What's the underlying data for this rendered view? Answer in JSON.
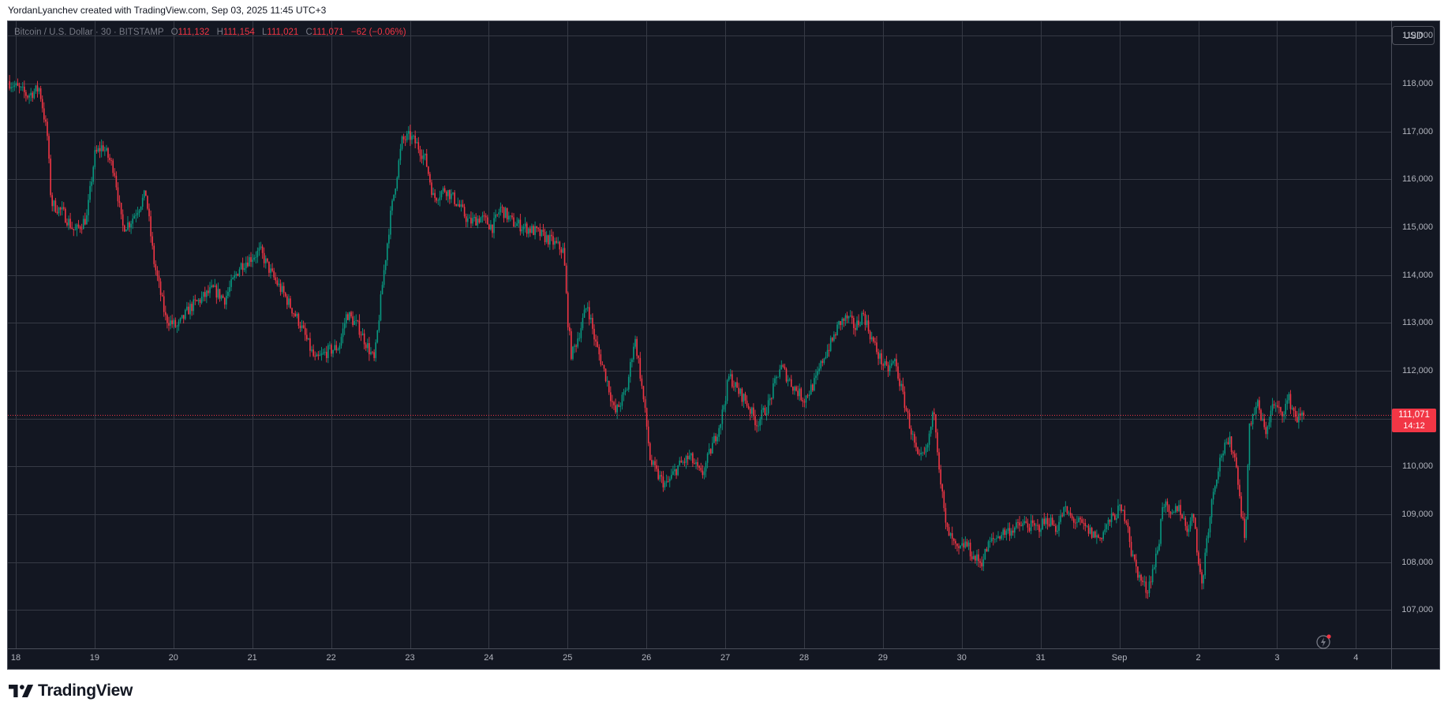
{
  "credit": "YordanLyanchev created with TradingView.com, Sep 03, 2025 11:45 UTC+3",
  "legend": {
    "symbol": "Bitcoin / U.S. Dollar · 30 · BITSTAMP",
    "o_key": "O",
    "o": "111,132",
    "h_key": "H",
    "h": "111,154",
    "l_key": "L",
    "l": "111,021",
    "c_key": "C",
    "c": "111,071",
    "change": "−62 (−0.06%)"
  },
  "currency_button": "USD",
  "price_tag": {
    "price": "111,071",
    "countdown": "14:12"
  },
  "brand": "TradingView",
  "icons": {
    "logo": "tradingview-logo-icon",
    "bolt": "lightning-icon"
  },
  "colors": {
    "up": "#089981",
    "down": "#f23645",
    "background": "#131722",
    "grid": "#363a45"
  },
  "chart_data": {
    "type": "candlestick",
    "symbol": "BTCUSD",
    "exchange": "BITSTAMP",
    "interval": "30",
    "ylim": [
      106200,
      119300
    ],
    "y_ticks": [
      119000,
      118000,
      117000,
      116000,
      115000,
      114000,
      113000,
      112000,
      111000,
      110000,
      109000,
      108000,
      107000
    ],
    "y_tick_labels": [
      "119,000",
      "118,000",
      "117,000",
      "116,000",
      "115,000",
      "114,000",
      "113,000",
      "112,000",
      "111,000",
      "110,000",
      "109,000",
      "108,000",
      "107,000"
    ],
    "x_tick_labels": [
      "18",
      "19",
      "20",
      "21",
      "22",
      "23",
      "24",
      "25",
      "26",
      "27",
      "28",
      "29",
      "30",
      "31",
      "Sep",
      "2",
      "3",
      "4"
    ],
    "x_tick_days": [
      0,
      1,
      2,
      3,
      4,
      5,
      6,
      7,
      8,
      9,
      10,
      11,
      12,
      13,
      14,
      15,
      16,
      17
    ],
    "last_price": 111071,
    "grid": true,
    "close_path": [
      [
        -0.1,
        118050
      ],
      [
        0.15,
        117750
      ],
      [
        0.3,
        117900
      ],
      [
        0.4,
        116900
      ],
      [
        0.45,
        115500
      ],
      [
        0.6,
        115300
      ],
      [
        0.75,
        114900
      ],
      [
        0.9,
        115200
      ],
      [
        1.0,
        116500
      ],
      [
        1.1,
        116700
      ],
      [
        1.25,
        116200
      ],
      [
        1.35,
        115000
      ],
      [
        1.45,
        115100
      ],
      [
        1.55,
        115400
      ],
      [
        1.65,
        115700
      ],
      [
        1.75,
        114300
      ],
      [
        1.9,
        113100
      ],
      [
        2.05,
        112900
      ],
      [
        2.2,
        113300
      ],
      [
        2.35,
        113500
      ],
      [
        2.5,
        113700
      ],
      [
        2.65,
        113500
      ],
      [
        2.85,
        114200
      ],
      [
        3.1,
        114500
      ],
      [
        3.25,
        114000
      ],
      [
        3.4,
        113600
      ],
      [
        3.6,
        113000
      ],
      [
        3.8,
        112200
      ],
      [
        3.95,
        112400
      ],
      [
        4.1,
        112500
      ],
      [
        4.2,
        113200
      ],
      [
        4.35,
        112900
      ],
      [
        4.55,
        112200
      ],
      [
        4.65,
        113800
      ],
      [
        4.75,
        115200
      ],
      [
        4.9,
        116800
      ],
      [
        5.0,
        116900
      ],
      [
        5.1,
        116700
      ],
      [
        5.2,
        116400
      ],
      [
        5.3,
        115600
      ],
      [
        5.45,
        115800
      ],
      [
        5.6,
        115500
      ],
      [
        5.75,
        115100
      ],
      [
        5.9,
        115200
      ],
      [
        6.05,
        115000
      ],
      [
        6.15,
        115400
      ],
      [
        6.3,
        115100
      ],
      [
        6.45,
        115000
      ],
      [
        6.6,
        114900
      ],
      [
        6.8,
        114700
      ],
      [
        6.95,
        114500
      ],
      [
        7.0,
        113100
      ],
      [
        7.05,
        112300
      ],
      [
        7.15,
        112800
      ],
      [
        7.25,
        113400
      ],
      [
        7.35,
        112600
      ],
      [
        7.5,
        111800
      ],
      [
        7.6,
        111100
      ],
      [
        7.75,
        111600
      ],
      [
        7.85,
        112700
      ],
      [
        7.9,
        112200
      ],
      [
        8.0,
        110900
      ],
      [
        8.05,
        110100
      ],
      [
        8.15,
        109800
      ],
      [
        8.25,
        109600
      ],
      [
        8.4,
        110000
      ],
      [
        8.55,
        110200
      ],
      [
        8.7,
        109800
      ],
      [
        8.85,
        110500
      ],
      [
        8.95,
        111000
      ],
      [
        9.05,
        111900
      ],
      [
        9.15,
        111600
      ],
      [
        9.25,
        111400
      ],
      [
        9.4,
        110900
      ],
      [
        9.55,
        111300
      ],
      [
        9.7,
        112100
      ],
      [
        9.85,
        111700
      ],
      [
        10.0,
        111400
      ],
      [
        10.15,
        111800
      ],
      [
        10.25,
        112300
      ],
      [
        10.35,
        112600
      ],
      [
        10.45,
        113000
      ],
      [
        10.55,
        113100
      ],
      [
        10.65,
        112900
      ],
      [
        10.75,
        113200
      ],
      [
        10.85,
        112700
      ],
      [
        10.95,
        112300
      ],
      [
        11.05,
        112000
      ],
      [
        11.15,
        112200
      ],
      [
        11.25,
        111500
      ],
      [
        11.35,
        110800
      ],
      [
        11.45,
        110100
      ],
      [
        11.55,
        110300
      ],
      [
        11.65,
        111200
      ],
      [
        11.72,
        109900
      ],
      [
        11.8,
        108700
      ],
      [
        11.95,
        108200
      ],
      [
        12.05,
        108400
      ],
      [
        12.15,
        108100
      ],
      [
        12.25,
        108000
      ],
      [
        12.35,
        108400
      ],
      [
        12.5,
        108600
      ],
      [
        12.65,
        108700
      ],
      [
        12.8,
        108800
      ],
      [
        12.95,
        108700
      ],
      [
        13.1,
        108900
      ],
      [
        13.2,
        108700
      ],
      [
        13.3,
        109100
      ],
      [
        13.4,
        108900
      ],
      [
        13.5,
        108800
      ],
      [
        13.65,
        108600
      ],
      [
        13.75,
        108500
      ],
      [
        13.85,
        108800
      ],
      [
        14.0,
        109100
      ],
      [
        14.1,
        108900
      ],
      [
        14.15,
        108200
      ],
      [
        14.25,
        107700
      ],
      [
        14.35,
        107400
      ],
      [
        14.45,
        108000
      ],
      [
        14.5,
        108400
      ],
      [
        14.55,
        109300
      ],
      [
        14.65,
        108900
      ],
      [
        14.75,
        109200
      ],
      [
        14.85,
        108700
      ],
      [
        14.95,
        109000
      ],
      [
        15.0,
        108000
      ],
      [
        15.05,
        107500
      ],
      [
        15.1,
        108400
      ],
      [
        15.2,
        109600
      ],
      [
        15.3,
        110300
      ],
      [
        15.4,
        110500
      ],
      [
        15.45,
        110300
      ],
      [
        15.5,
        109800
      ],
      [
        15.55,
        109000
      ],
      [
        15.6,
        108500
      ],
      [
        15.65,
        110900
      ],
      [
        15.75,
        111300
      ],
      [
        15.85,
        110700
      ],
      [
        15.95,
        111300
      ],
      [
        16.05,
        111100
      ],
      [
        16.15,
        111400
      ],
      [
        16.25,
        111000
      ],
      [
        16.35,
        111071
      ]
    ]
  }
}
